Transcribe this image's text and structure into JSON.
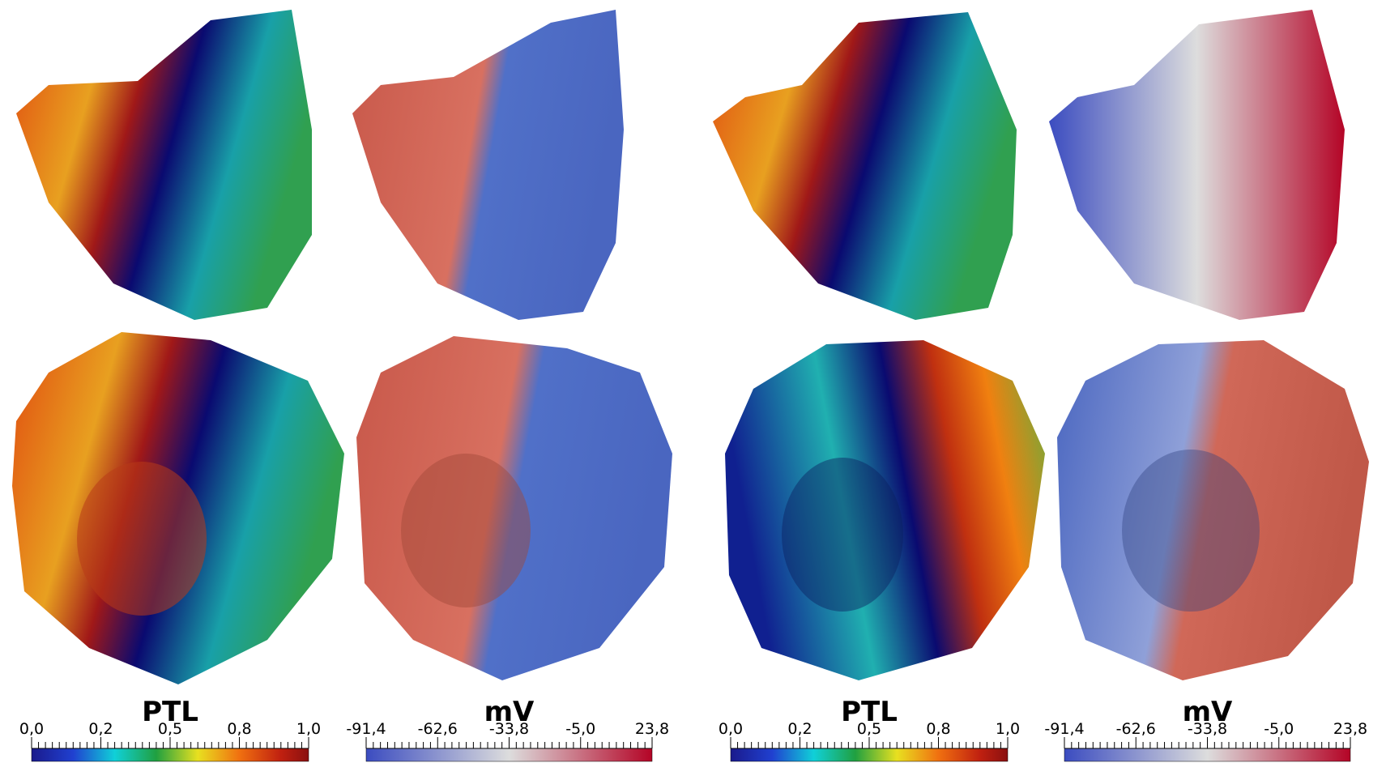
{
  "panels": [
    {
      "colorbar": {
        "title": "PTL",
        "ticks": [
          "0,0",
          "0,2",
          "0,5",
          "0,8",
          "1,0"
        ]
      }
    },
    {
      "colorbar": {
        "title": "mV",
        "ticks": [
          "-91,4",
          "-62,6",
          "-33,8",
          "-5,0",
          "23,8"
        ]
      }
    },
    {
      "colorbar": {
        "title": "PTL",
        "ticks": [
          "0,0",
          "0,2",
          "0,5",
          "0,8",
          "1,0"
        ]
      }
    },
    {
      "colorbar": {
        "title": "mV",
        "ticks": [
          "-91,4",
          "-62,6",
          "-33,8",
          "-5,0",
          "23,8"
        ]
      }
    }
  ]
}
